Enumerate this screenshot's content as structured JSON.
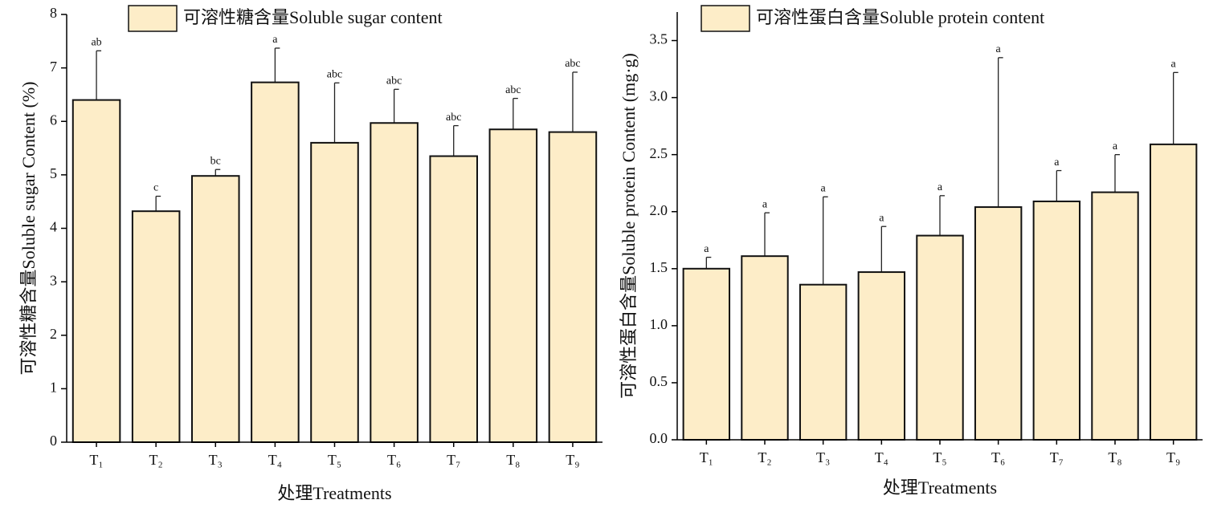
{
  "chart_data": [
    {
      "type": "bar",
      "ylabel": "可溶性糖含量Soluble sugar Content (%)",
      "xlabel": "处理Treatments",
      "categories": [
        "T₁",
        "T₂",
        "T₃",
        "T₄",
        "T₅",
        "T₆",
        "T₇",
        "T₈",
        "T₉"
      ],
      "series": [
        {
          "name": "可溶性糖含量Soluble sugar  content",
          "color": "#fdedc8",
          "values": [
            6.4,
            4.32,
            4.98,
            6.73,
            5.6,
            5.97,
            5.35,
            5.85,
            5.8
          ],
          "errors": [
            0.92,
            0.28,
            0.12,
            0.64,
            1.12,
            0.63,
            0.57,
            0.58,
            1.12
          ],
          "letters": [
            "ab",
            "c",
            "bc",
            "a",
            "abc",
            "abc",
            "abc",
            "abc",
            "abc"
          ]
        }
      ],
      "ylim": [
        0,
        8
      ],
      "yticks": [
        0,
        1,
        2,
        3,
        4,
        5,
        6,
        7,
        8
      ]
    },
    {
      "type": "bar",
      "ylabel": "可溶性蛋白含量Soluble protein Content (mg·g)",
      "xlabel": "处理Treatments",
      "categories": [
        "T₁",
        "T₂",
        "T₃",
        "T₄",
        "T₅",
        "T₆",
        "T₇",
        "T₈",
        "T₉"
      ],
      "series": [
        {
          "name": "可溶性蛋白含量Soluble protein  content",
          "color": "#fdedc8",
          "values": [
            1.5,
            1.61,
            1.36,
            1.47,
            1.79,
            2.04,
            2.09,
            2.17,
            2.59
          ],
          "errors": [
            0.1,
            0.38,
            0.77,
            0.4,
            0.35,
            1.31,
            0.27,
            0.33,
            0.63
          ],
          "letters": [
            "a",
            "a",
            "a",
            "a",
            "a",
            "a",
            "a",
            "a",
            "a"
          ]
        }
      ],
      "ylim": [
        0,
        3.75
      ],
      "yticks": [
        {
          "value": 0,
          "label": "0.0"
        },
        {
          "value": 0.5,
          "label": "0.5"
        },
        {
          "value": 1,
          "label": "1.0"
        },
        {
          "value": 1.5,
          "label": "1.5"
        },
        {
          "value": 2,
          "label": "2.0"
        },
        {
          "value": 2.5,
          "label": "2.5"
        },
        {
          "value": 3,
          "label": "3.0"
        },
        {
          "value": 3.5,
          "label": "3.5"
        }
      ]
    }
  ]
}
